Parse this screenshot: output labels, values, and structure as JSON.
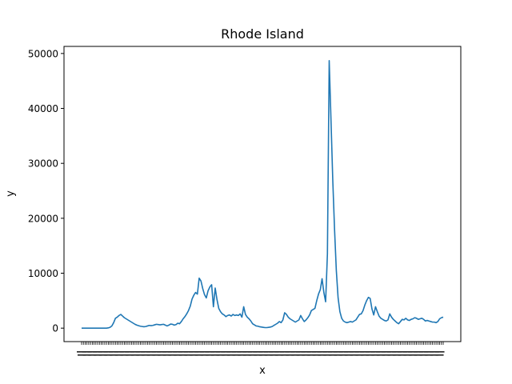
{
  "chart_data": {
    "type": "line",
    "title": "Rhode Island",
    "xlabel": "x",
    "ylabel": "y",
    "ylim": [
      -2450,
      51290
    ],
    "yticks": [
      0,
      10000,
      20000,
      30000,
      40000,
      50000
    ],
    "ytick_labels": [
      "0",
      "10000",
      "20000",
      "30000",
      "40000",
      "50000"
    ],
    "grid": false,
    "line_color": "#1f77b4",
    "x_note": "x tick labels are dense and overlap into an unreadable strip",
    "series": [
      {
        "values": [
          0,
          0,
          0,
          0,
          0,
          0,
          0,
          0,
          0,
          0,
          0,
          0,
          0,
          0,
          0,
          50,
          150,
          400,
          1000,
          1800,
          2000,
          2300,
          2500,
          2200,
          1900,
          1700,
          1500,
          1300,
          1100,
          900,
          700,
          550,
          450,
          350,
          300,
          250,
          300,
          400,
          500,
          450,
          500,
          600,
          700,
          650,
          600,
          650,
          700,
          550,
          400,
          550,
          750,
          700,
          550,
          650,
          900,
          800,
          1200,
          1700,
          2100,
          2600,
          3200,
          4000,
          5300,
          6000,
          6500,
          6200,
          9100,
          8600,
          7200,
          6100,
          5500,
          6800,
          7500,
          7900,
          3900,
          7300,
          5200,
          3600,
          3000,
          2600,
          2400,
          2100,
          2300,
          2400,
          2200,
          2500,
          2300,
          2400,
          2300,
          2600,
          2000,
          3900,
          2500,
          2000,
          1700,
          1300,
          800,
          600,
          400,
          350,
          250,
          200,
          150,
          100,
          100,
          150,
          200,
          300,
          500,
          700,
          900,
          1200,
          1000,
          1500,
          2800,
          2500,
          2000,
          1700,
          1500,
          1300,
          1100,
          1300,
          1500,
          2300,
          1700,
          1200,
          1500,
          1900,
          2400,
          3200,
          3400,
          3600,
          5000,
          6200,
          7000,
          9000,
          6500,
          4800,
          13500,
          48700,
          38000,
          27000,
          18000,
          10500,
          5500,
          3000,
          1800,
          1300,
          1100,
          1000,
          1100,
          1200,
          1100,
          1300,
          1500,
          2000,
          2500,
          2600,
          3200,
          4200,
          5000,
          5600,
          5400,
          3500,
          2400,
          3900,
          3000,
          2200,
          1800,
          1600,
          1400,
          1300,
          1500,
          2600,
          2000,
          1600,
          1300,
          1000,
          800,
          1200,
          1600,
          1500,
          1800,
          1500,
          1400,
          1600,
          1700,
          1900,
          1800,
          1600,
          1700,
          1800,
          1600,
          1300,
          1400,
          1300,
          1200,
          1100,
          1100,
          1000,
          1200,
          1700,
          1900,
          2000
        ]
      }
    ]
  }
}
